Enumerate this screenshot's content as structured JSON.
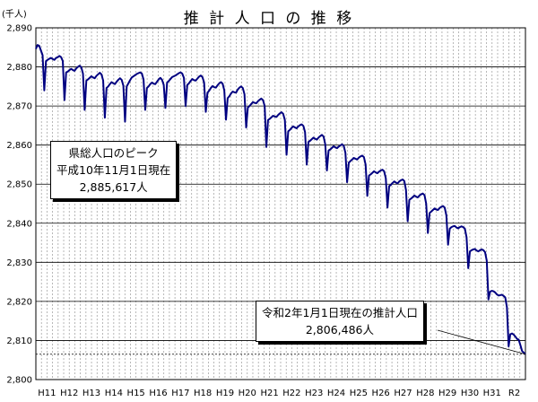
{
  "chart_data": {
    "type": "line",
    "title": "推 計 人 口 の 推 移",
    "ylabel": "(千人)",
    "xlabel": "",
    "ylim": [
      2800,
      2890
    ],
    "yticks": [
      2800,
      2810,
      2820,
      2830,
      2840,
      2850,
      2860,
      2870,
      2880,
      2890
    ],
    "ytick_labels": [
      "2,800",
      "2,810",
      "2,820",
      "2,830",
      "2,840",
      "2,850",
      "2,860",
      "2,870",
      "2,880",
      "2,890"
    ],
    "x_tick_labels": [
      "H11",
      "H12",
      "H13",
      "H14",
      "H15",
      "H16",
      "H17",
      "H18",
      "H19",
      "H20",
      "H21",
      "H22",
      "H23",
      "H24",
      "H25",
      "H26",
      "H27",
      "H28",
      "H29",
      "H30",
      "H31",
      "R2"
    ],
    "grid": true,
    "line_color": "#000080",
    "series": [
      {
        "values": [
          2884.6,
          2885.6,
          2885.4,
          2884.2,
          2883.0,
          2874.0,
          2881.5,
          2881.8,
          2882.1,
          2882.3,
          2882.0,
          2881.8,
          2882.3,
          2882.5,
          2882.8,
          2882.5,
          2881.5,
          2871.5,
          2878.6,
          2878.8,
          2879.2,
          2879.5,
          2879.2,
          2879.0,
          2879.6,
          2880.0,
          2880.3,
          2879.9,
          2878.3,
          2869.0,
          2876.5,
          2876.8,
          2877.2,
          2877.6,
          2877.3,
          2877.1,
          2877.7,
          2878.1,
          2878.5,
          2878.1,
          2876.5,
          2867.0,
          2874.6,
          2875.0,
          2875.6,
          2876.1,
          2875.8,
          2875.6,
          2876.2,
          2876.7,
          2877.1,
          2876.7,
          2875.2,
          2866.0,
          2875.0,
          2875.8,
          2876.6,
          2877.3,
          2877.6,
          2877.9,
          2878.2,
          2878.4,
          2878.6,
          2878.3,
          2876.8,
          2869.0,
          2874.6,
          2875.0,
          2875.6,
          2876.0,
          2875.7,
          2875.6,
          2876.2,
          2876.8,
          2877.2,
          2876.7,
          2875.4,
          2869.5,
          2876.0,
          2876.4,
          2876.9,
          2877.4,
          2877.6,
          2877.8,
          2878.1,
          2878.4,
          2878.6,
          2878.3,
          2877.2,
          2870.0,
          2875.4,
          2875.8,
          2876.4,
          2876.9,
          2876.6,
          2876.5,
          2877.0,
          2877.5,
          2877.8,
          2877.4,
          2876.0,
          2868.5,
          2873.4,
          2873.9,
          2874.6,
          2875.1,
          2874.8,
          2874.7,
          2875.3,
          2875.8,
          2876.1,
          2875.7,
          2874.0,
          2866.5,
          2872.0,
          2872.5,
          2873.2,
          2873.7,
          2873.5,
          2873.4,
          2874.2,
          2874.7,
          2875.0,
          2874.6,
          2873.0,
          2864.5,
          2869.6,
          2870.0,
          2870.5,
          2871.0,
          2870.8,
          2870.7,
          2871.2,
          2871.6,
          2871.9,
          2871.5,
          2870.0,
          2859.5,
          2866.4,
          2866.7,
          2867.1,
          2867.5,
          2867.3,
          2867.2,
          2867.7,
          2868.1,
          2868.4,
          2868.0,
          2866.4,
          2857.5,
          2863.5,
          2863.9,
          2864.4,
          2864.8,
          2864.5,
          2864.3,
          2864.8,
          2865.1,
          2865.3,
          2864.9,
          2863.3,
          2855.0,
          2860.8,
          2861.1,
          2861.5,
          2861.9,
          2861.6,
          2861.4,
          2861.9,
          2862.3,
          2862.6,
          2862.2,
          2860.2,
          2853.5,
          2858.6,
          2858.9,
          2859.3,
          2859.7,
          2859.4,
          2859.2,
          2859.6,
          2859.9,
          2860.2,
          2859.8,
          2858.0,
          2850.5,
          2855.5,
          2855.9,
          2856.3,
          2856.7,
          2856.5,
          2856.3,
          2856.8,
          2857.1,
          2857.3,
          2856.9,
          2855.0,
          2847.0,
          2852.2,
          2852.5,
          2852.9,
          2853.3,
          2853.0,
          2852.8,
          2853.2,
          2853.5,
          2853.7,
          2853.3,
          2851.5,
          2844.0,
          2849.5,
          2849.8,
          2850.3,
          2850.7,
          2850.4,
          2850.2,
          2850.7,
          2851.0,
          2851.2,
          2850.8,
          2848.5,
          2840.5,
          2846.0,
          2846.3,
          2846.7,
          2847.1,
          2846.8,
          2846.6,
          2847.1,
          2847.4,
          2847.6,
          2847.2,
          2845.0,
          2837.5,
          2842.6,
          2843.0,
          2843.4,
          2843.8,
          2843.5,
          2843.4,
          2843.9,
          2844.2,
          2844.4,
          2844.0,
          2842.0,
          2834.5,
          2838.6,
          2839.0,
          2839.2,
          2839.3,
          2838.9,
          2838.7,
          2839.0,
          2839.2,
          2839.0,
          2838.6,
          2836.4,
          2828.5,
          2832.8,
          2833.1,
          2833.3,
          2833.4,
          2833.0,
          2832.8,
          2833.1,
          2833.3,
          2833.1,
          2832.6,
          2830.4,
          2820.5,
          2822.5,
          2822.7,
          2822.6,
          2822.3,
          2821.8,
          2821.5,
          2821.6,
          2821.7,
          2821.4,
          2821.0,
          2818.5,
          2808.5,
          2811.6,
          2811.8,
          2811.5,
          2811.0,
          2810.4,
          2810.2,
          2808.8,
          2807.3,
          2806.9,
          2806.486
        ]
      }
    ],
    "annotations": [
      {
        "lines": [
          "県総人口のピーク",
          "平成10年11月1日現在",
          "2,885,617人"
        ]
      },
      {
        "lines": [
          "令和2年1月1日現在の推計人口",
          "2,806,486人"
        ]
      }
    ]
  }
}
